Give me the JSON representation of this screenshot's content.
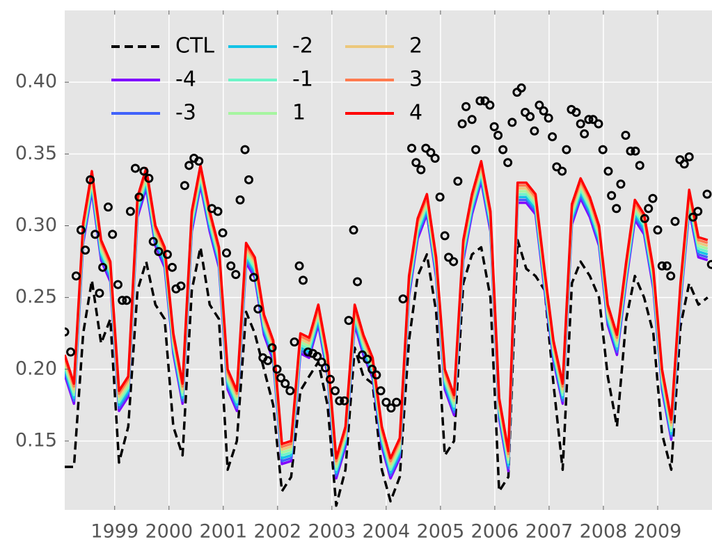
{
  "chart_data": {
    "type": "line",
    "xlim": [
      1998.08,
      2010.0
    ],
    "xticks": [
      1999,
      2000,
      2001,
      2002,
      2003,
      2004,
      2005,
      2006,
      2007,
      2008,
      2009
    ],
    "ylim": [
      0.102,
      0.45
    ],
    "yticks": [
      0.15,
      {
        "value": 0.2,
        "label": "0.20"
      },
      0.25,
      {
        "value": 0.3,
        "label": "0.30"
      },
      0.35,
      {
        "value": 0.4,
        "label": "0.40"
      }
    ],
    "grid": true,
    "legend": "upper left",
    "x": [
      1998.08,
      1998.25,
      1998.42,
      1998.58,
      1998.75,
      1998.92,
      1999.08,
      1999.25,
      1999.42,
      1999.58,
      1999.75,
      1999.92,
      2000.08,
      2000.25,
      2000.42,
      2000.58,
      2000.75,
      2000.92,
      2001.08,
      2001.25,
      2001.42,
      2001.58,
      2001.75,
      2001.92,
      2002.08,
      2002.25,
      2002.42,
      2002.58,
      2002.75,
      2002.92,
      2003.08,
      2003.25,
      2003.42,
      2003.58,
      2003.75,
      2003.92,
      2004.08,
      2004.25,
      2004.42,
      2004.58,
      2004.75,
      2004.92,
      2005.08,
      2005.25,
      2005.42,
      2005.58,
      2005.75,
      2005.92,
      2006.08,
      2006.25,
      2006.42,
      2006.58,
      2006.75,
      2006.92,
      2007.08,
      2007.25,
      2007.42,
      2007.58,
      2007.75,
      2007.92,
      2008.08,
      2008.25,
      2008.42,
      2008.58,
      2008.75,
      2008.92,
      2009.08,
      2009.25,
      2009.42,
      2009.58,
      2009.75,
      2009.92
    ],
    "series": [
      {
        "name": "CTL",
        "color": "#000000",
        "linestyle": "dashed",
        "values": [
          0.132,
          0.132,
          0.225,
          0.262,
          0.218,
          0.235,
          0.135,
          0.16,
          0.255,
          0.275,
          0.245,
          0.235,
          0.16,
          0.14,
          0.255,
          0.285,
          0.245,
          0.235,
          0.13,
          0.15,
          0.24,
          0.225,
          0.2,
          0.175,
          0.115,
          0.125,
          0.185,
          0.195,
          0.205,
          0.175,
          0.105,
          0.13,
          0.215,
          0.195,
          0.19,
          0.13,
          0.108,
          0.125,
          0.22,
          0.265,
          0.28,
          0.24,
          0.14,
          0.15,
          0.26,
          0.28,
          0.285,
          0.25,
          0.115,
          0.125,
          0.29,
          0.27,
          0.265,
          0.255,
          0.19,
          0.13,
          0.26,
          0.275,
          0.265,
          0.25,
          0.195,
          0.16,
          0.235,
          0.265,
          0.25,
          0.225,
          0.155,
          0.13,
          0.23,
          0.26,
          0.245,
          0.25
        ]
      },
      {
        "name": "-4",
        "color": "#8000ff",
        "linestyle": "solid",
        "values": [
          0.196,
          0.176,
          0.288,
          0.324,
          0.276,
          0.261,
          0.171,
          0.181,
          0.306,
          0.326,
          0.286,
          0.271,
          0.211,
          0.176,
          0.296,
          0.328,
          0.296,
          0.271,
          0.186,
          0.171,
          0.274,
          0.264,
          0.224,
          0.206,
          0.134,
          0.136,
          0.211,
          0.208,
          0.231,
          0.196,
          0.124,
          0.146,
          0.231,
          0.21,
          0.194,
          0.146,
          0.124,
          0.138,
          0.251,
          0.291,
          0.308,
          0.264,
          0.186,
          0.168,
          0.276,
          0.308,
          0.331,
          0.296,
          0.166,
          0.129,
          0.316,
          0.316,
          0.308,
          0.254,
          0.206,
          0.176,
          0.301,
          0.319,
          0.306,
          0.286,
          0.231,
          0.21,
          0.261,
          0.304,
          0.294,
          0.256,
          0.186,
          0.151,
          0.246,
          0.311,
          0.278,
          0.276
        ]
      },
      {
        "name": "-3",
        "color": "#4062fa",
        "linestyle": "solid",
        "values": [
          0.198,
          0.178,
          0.29,
          0.326,
          0.278,
          0.263,
          0.173,
          0.183,
          0.308,
          0.328,
          0.288,
          0.273,
          0.213,
          0.178,
          0.298,
          0.33,
          0.298,
          0.273,
          0.188,
          0.173,
          0.276,
          0.266,
          0.226,
          0.208,
          0.136,
          0.138,
          0.213,
          0.21,
          0.233,
          0.198,
          0.126,
          0.148,
          0.233,
          0.212,
          0.196,
          0.148,
          0.126,
          0.14,
          0.253,
          0.293,
          0.31,
          0.266,
          0.188,
          0.17,
          0.278,
          0.31,
          0.333,
          0.298,
          0.168,
          0.131,
          0.318,
          0.318,
          0.31,
          0.256,
          0.208,
          0.178,
          0.303,
          0.321,
          0.308,
          0.288,
          0.233,
          0.212,
          0.263,
          0.306,
          0.296,
          0.258,
          0.188,
          0.153,
          0.248,
          0.313,
          0.28,
          0.278
        ]
      },
      {
        "name": "-2",
        "color": "#14c3e6",
        "linestyle": "solid",
        "values": [
          0.2,
          0.18,
          0.292,
          0.328,
          0.28,
          0.265,
          0.175,
          0.185,
          0.31,
          0.33,
          0.29,
          0.275,
          0.215,
          0.18,
          0.3,
          0.332,
          0.3,
          0.275,
          0.19,
          0.175,
          0.278,
          0.268,
          0.228,
          0.21,
          0.138,
          0.14,
          0.215,
          0.212,
          0.235,
          0.2,
          0.128,
          0.15,
          0.235,
          0.214,
          0.198,
          0.15,
          0.128,
          0.142,
          0.255,
          0.295,
          0.312,
          0.268,
          0.19,
          0.172,
          0.28,
          0.312,
          0.335,
          0.3,
          0.17,
          0.133,
          0.32,
          0.32,
          0.312,
          0.258,
          0.21,
          0.18,
          0.305,
          0.323,
          0.31,
          0.29,
          0.235,
          0.214,
          0.265,
          0.308,
          0.298,
          0.26,
          0.19,
          0.155,
          0.25,
          0.315,
          0.282,
          0.28
        ]
      },
      {
        "name": "-1",
        "color": "#6ef5c8",
        "linestyle": "solid",
        "values": [
          0.202,
          0.182,
          0.294,
          0.33,
          0.282,
          0.267,
          0.177,
          0.187,
          0.312,
          0.332,
          0.292,
          0.277,
          0.217,
          0.182,
          0.302,
          0.334,
          0.302,
          0.277,
          0.192,
          0.177,
          0.28,
          0.27,
          0.23,
          0.212,
          0.14,
          0.142,
          0.217,
          0.214,
          0.237,
          0.202,
          0.13,
          0.152,
          0.237,
          0.216,
          0.2,
          0.152,
          0.13,
          0.144,
          0.257,
          0.297,
          0.314,
          0.27,
          0.192,
          0.174,
          0.282,
          0.314,
          0.337,
          0.302,
          0.172,
          0.135,
          0.322,
          0.322,
          0.314,
          0.26,
          0.212,
          0.182,
          0.307,
          0.325,
          0.312,
          0.292,
          0.237,
          0.216,
          0.267,
          0.31,
          0.3,
          0.262,
          0.192,
          0.157,
          0.252,
          0.317,
          0.284,
          0.282
        ]
      },
      {
        "name": "1",
        "color": "#a6f5a0",
        "linestyle": "solid",
        "values": [
          0.204,
          0.184,
          0.296,
          0.332,
          0.284,
          0.269,
          0.179,
          0.189,
          0.314,
          0.334,
          0.294,
          0.279,
          0.219,
          0.184,
          0.304,
          0.336,
          0.304,
          0.279,
          0.194,
          0.179,
          0.282,
          0.272,
          0.232,
          0.214,
          0.142,
          0.144,
          0.219,
          0.216,
          0.239,
          0.204,
          0.132,
          0.154,
          0.239,
          0.218,
          0.202,
          0.154,
          0.132,
          0.146,
          0.259,
          0.299,
          0.316,
          0.272,
          0.194,
          0.176,
          0.284,
          0.316,
          0.339,
          0.304,
          0.174,
          0.137,
          0.324,
          0.324,
          0.316,
          0.262,
          0.214,
          0.184,
          0.309,
          0.327,
          0.314,
          0.294,
          0.239,
          0.218,
          0.269,
          0.312,
          0.302,
          0.264,
          0.194,
          0.159,
          0.254,
          0.319,
          0.286,
          0.284
        ]
      },
      {
        "name": "2",
        "color": "#ecc87c",
        "linestyle": "solid",
        "values": [
          0.206,
          0.186,
          0.298,
          0.334,
          0.286,
          0.271,
          0.181,
          0.191,
          0.316,
          0.336,
          0.296,
          0.281,
          0.221,
          0.186,
          0.306,
          0.338,
          0.306,
          0.281,
          0.196,
          0.181,
          0.284,
          0.274,
          0.234,
          0.216,
          0.144,
          0.146,
          0.221,
          0.218,
          0.241,
          0.206,
          0.134,
          0.156,
          0.241,
          0.22,
          0.204,
          0.156,
          0.134,
          0.148,
          0.261,
          0.301,
          0.318,
          0.274,
          0.196,
          0.178,
          0.286,
          0.318,
          0.341,
          0.306,
          0.176,
          0.139,
          0.326,
          0.326,
          0.318,
          0.264,
          0.216,
          0.186,
          0.311,
          0.329,
          0.316,
          0.296,
          0.241,
          0.22,
          0.271,
          0.314,
          0.304,
          0.266,
          0.196,
          0.161,
          0.256,
          0.321,
          0.288,
          0.286
        ]
      },
      {
        "name": "3",
        "color": "#ff7b4f",
        "linestyle": "solid",
        "values": [
          0.208,
          0.188,
          0.3,
          0.336,
          0.288,
          0.273,
          0.183,
          0.193,
          0.318,
          0.338,
          0.298,
          0.283,
          0.223,
          0.188,
          0.308,
          0.34,
          0.308,
          0.283,
          0.198,
          0.183,
          0.286,
          0.276,
          0.236,
          0.218,
          0.146,
          0.148,
          0.223,
          0.22,
          0.243,
          0.208,
          0.136,
          0.158,
          0.243,
          0.222,
          0.206,
          0.158,
          0.136,
          0.15,
          0.263,
          0.303,
          0.32,
          0.276,
          0.198,
          0.18,
          0.288,
          0.32,
          0.343,
          0.308,
          0.178,
          0.141,
          0.328,
          0.328,
          0.32,
          0.266,
          0.218,
          0.188,
          0.313,
          0.331,
          0.318,
          0.298,
          0.243,
          0.222,
          0.273,
          0.316,
          0.306,
          0.268,
          0.198,
          0.163,
          0.258,
          0.323,
          0.29,
          0.288
        ]
      },
      {
        "name": "4",
        "color": "#ff0000",
        "linestyle": "solid",
        "values": [
          0.21,
          0.19,
          0.302,
          0.338,
          0.29,
          0.275,
          0.185,
          0.195,
          0.32,
          0.34,
          0.3,
          0.285,
          0.225,
          0.19,
          0.31,
          0.342,
          0.31,
          0.285,
          0.2,
          0.185,
          0.288,
          0.278,
          0.238,
          0.22,
          0.148,
          0.15,
          0.225,
          0.222,
          0.245,
          0.21,
          0.138,
          0.16,
          0.245,
          0.224,
          0.208,
          0.16,
          0.138,
          0.152,
          0.265,
          0.305,
          0.322,
          0.278,
          0.2,
          0.182,
          0.29,
          0.322,
          0.345,
          0.31,
          0.18,
          0.143,
          0.33,
          0.33,
          0.322,
          0.268,
          0.22,
          0.19,
          0.315,
          0.333,
          0.32,
          0.3,
          0.245,
          0.224,
          0.275,
          0.318,
          0.308,
          0.27,
          0.2,
          0.165,
          0.26,
          0.325,
          0.292,
          0.29
        ]
      }
    ],
    "points": {
      "color": "#000000",
      "x": [
        1998.08,
        1998.19,
        1998.29,
        1998.38,
        1998.46,
        1998.55,
        1998.64,
        1998.72,
        1998.78,
        1998.88,
        1998.96,
        1999.06,
        1999.14,
        1999.22,
        1999.29,
        1999.38,
        1999.45,
        1999.54,
        1999.63,
        1999.71,
        1999.81,
        1999.97,
        2000.06,
        2000.13,
        2000.22,
        2000.29,
        2000.37,
        2000.46,
        2000.55,
        2000.79,
        2000.9,
        2000.99,
        2001.06,
        2001.14,
        2001.23,
        2001.31,
        2001.4,
        2001.47,
        2001.56,
        2001.64,
        2001.73,
        2001.82,
        2001.9,
        2001.99,
        2002.06,
        2002.14,
        2002.23,
        2002.31,
        2002.4,
        2002.47,
        2002.56,
        2002.65,
        2002.73,
        2002.81,
        2002.88,
        2002.97,
        2003.06,
        2003.14,
        2003.23,
        2003.31,
        2003.4,
        2003.47,
        2003.56,
        2003.65,
        2003.74,
        2003.82,
        2003.9,
        2004.0,
        2004.09,
        2004.19,
        2004.31,
        2004.47,
        2004.55,
        2004.64,
        2004.73,
        2004.82,
        2004.9,
        2004.99,
        2005.08,
        2005.15,
        2005.24,
        2005.32,
        2005.4,
        2005.47,
        2005.58,
        2005.65,
        2005.73,
        2005.82,
        2005.91,
        2005.99,
        2006.06,
        2006.15,
        2006.24,
        2006.32,
        2006.41,
        2006.49,
        2006.56,
        2006.65,
        2006.73,
        2006.82,
        2006.9,
        2006.99,
        2007.06,
        2007.14,
        2007.24,
        2007.32,
        2007.41,
        2007.5,
        2007.58,
        2007.65,
        2007.73,
        2007.81,
        2007.91,
        2007.99,
        2008.09,
        2008.15,
        2008.24,
        2008.32,
        2008.41,
        2008.5,
        2008.59,
        2008.67,
        2008.76,
        2008.83,
        2008.91,
        2009.0,
        2009.08,
        2009.17,
        2009.24,
        2009.32,
        2009.41,
        2009.49,
        2009.58,
        2009.65,
        2009.74,
        2009.91,
        2009.99
      ],
      "values": [
        0.226,
        0.212,
        0.265,
        0.297,
        0.283,
        0.332,
        0.294,
        0.253,
        0.271,
        0.313,
        0.294,
        0.259,
        0.248,
        0.248,
        0.31,
        0.34,
        0.32,
        0.338,
        0.333,
        0.289,
        0.282,
        0.28,
        0.271,
        0.256,
        0.258,
        0.328,
        0.342,
        0.347,
        0.345,
        0.312,
        0.31,
        0.295,
        0.281,
        0.272,
        0.266,
        0.318,
        0.353,
        0.332,
        0.264,
        0.242,
        0.208,
        0.206,
        0.215,
        0.2,
        0.194,
        0.19,
        0.185,
        0.219,
        0.272,
        0.262,
        0.212,
        0.211,
        0.209,
        0.205,
        0.201,
        0.193,
        0.185,
        0.178,
        0.178,
        0.234,
        0.297,
        0.261,
        0.21,
        0.207,
        0.2,
        0.196,
        0.185,
        0.177,
        0.173,
        0.177,
        0.249,
        0.354,
        0.344,
        0.339,
        0.354,
        0.351,
        0.347,
        0.32,
        0.293,
        0.278,
        0.275,
        0.331,
        0.371,
        0.383,
        0.374,
        0.353,
        0.387,
        0.387,
        0.384,
        0.369,
        0.363,
        0.353,
        0.344,
        0.372,
        0.393,
        0.396,
        0.379,
        0.376,
        0.366,
        0.384,
        0.38,
        0.375,
        0.362,
        0.341,
        0.338,
        0.353,
        0.381,
        0.379,
        0.371,
        0.364,
        0.374,
        0.374,
        0.371,
        0.353,
        0.338,
        0.321,
        0.312,
        0.329,
        0.363,
        0.352,
        0.352,
        0.342,
        0.305,
        0.312,
        0.319,
        0.297,
        0.272,
        0.272,
        0.265,
        0.303,
        0.346,
        0.343,
        0.348,
        0.306,
        0.31,
        0.322,
        0.273
      ]
    }
  }
}
